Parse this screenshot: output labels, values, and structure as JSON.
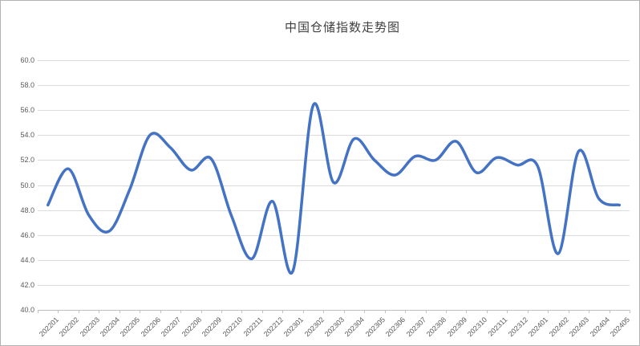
{
  "window": {
    "background": "#ffffff",
    "border_color": "#b3b3b3"
  },
  "chart_data": {
    "type": "line",
    "title": "中国仓储指数走势图",
    "xlabel": "",
    "ylabel": "",
    "categories": [
      "202201",
      "202202",
      "202203",
      "202204",
      "202205",
      "202206",
      "202207",
      "202208",
      "202209",
      "202210",
      "202211",
      "202212",
      "202301",
      "202302",
      "202303",
      "202304",
      "202305",
      "202306",
      "202307",
      "202308",
      "202309",
      "202310",
      "202311",
      "202312",
      "202401",
      "202402",
      "202403",
      "202404",
      "202405"
    ],
    "values": [
      48.4,
      51.3,
      47.6,
      46.3,
      49.6,
      54.0,
      53.0,
      51.2,
      52.1,
      47.5,
      44.1,
      48.7,
      43.1,
      56.4,
      50.2,
      53.7,
      52.0,
      50.8,
      52.3,
      52.0,
      53.5,
      51.0,
      52.2,
      51.6,
      51.5,
      44.5,
      52.7,
      48.9,
      48.4
    ],
    "ylim": [
      40.0,
      60.0
    ],
    "y_tick_step": 2.0,
    "y_tick_labels": [
      "60.0",
      "58.0",
      "56.0",
      "54.0",
      "52.0",
      "50.0",
      "48.0",
      "46.0",
      "44.0",
      "42.0",
      "40.0"
    ],
    "grid": "horizontal",
    "legend": "none",
    "smoothed_line": true,
    "line_color": "#4472C4",
    "gridline_color": "#DCDCDC",
    "axis_color": "#BFBFBF",
    "tick_label_color": "#595959",
    "title_color": "#404040"
  }
}
